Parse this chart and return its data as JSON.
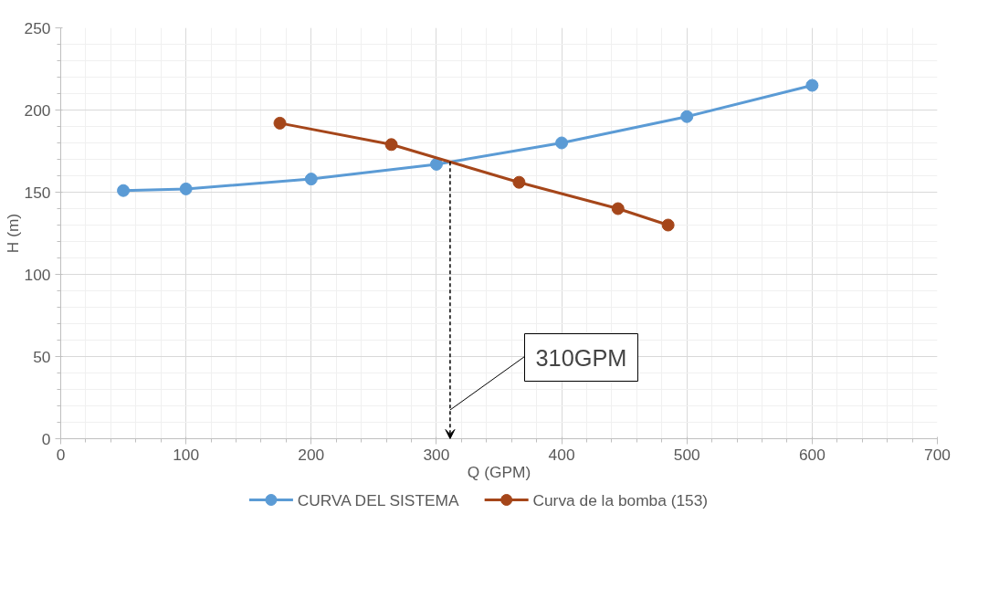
{
  "chart_data": {
    "type": "line",
    "xlabel": "Q (GPM)",
    "ylabel": "H (m)",
    "xlim": [
      0,
      700
    ],
    "xticks": [
      0,
      100,
      200,
      300,
      400,
      500,
      600,
      700
    ],
    "ylim": [
      0,
      250
    ],
    "yticks": [
      0,
      50,
      100,
      150,
      200,
      250
    ],
    "grid": true,
    "legend": "bottom",
    "marker": "circle",
    "line_style": "solid",
    "series": [
      {
        "name": "CURVA DEL SISTEMA",
        "color": "#5b9bd5",
        "x": [
          50,
          100,
          200,
          300,
          400,
          500,
          600
        ],
        "values": [
          151,
          152,
          158,
          167,
          180,
          196,
          215
        ]
      },
      {
        "name": "Curva de la bomba (153)",
        "color": "#a5461a",
        "x": [
          175,
          264,
          366,
          445,
          485
        ],
        "values": [
          192,
          179,
          156,
          140,
          130
        ]
      }
    ],
    "annotations": [
      "310GPM"
    ]
  }
}
